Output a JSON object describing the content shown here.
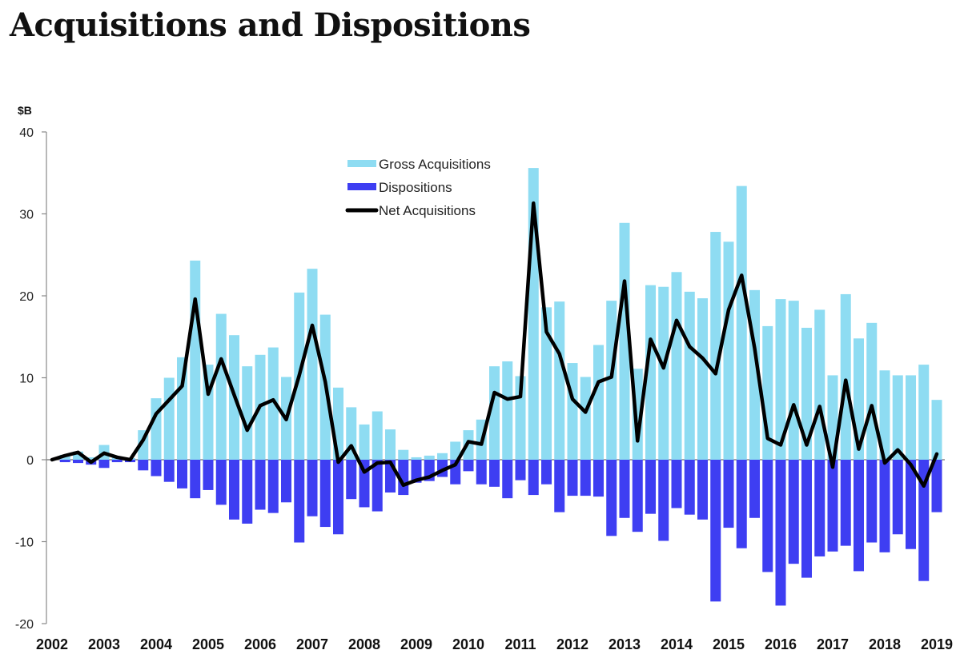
{
  "title": "Acquisitions and Dispositions",
  "chart_data": {
    "type": "bar",
    "title": "Acquisitions and Dispositions",
    "ylabel": "$B",
    "xlabel": "",
    "ylim": [
      -20,
      40
    ],
    "yticks": [
      -20,
      -10,
      0,
      10,
      20,
      30,
      40
    ],
    "years": [
      "2002",
      "2003",
      "2004",
      "2005",
      "2006",
      "2007",
      "2008",
      "2009",
      "2010",
      "2011",
      "2012",
      "2013",
      "2014",
      "2015",
      "2016",
      "2017",
      "2018",
      "2019"
    ],
    "colors": {
      "gross": "#8edcf2",
      "dispositions": "#3e3ef2",
      "net": "#000000",
      "axis": "#888888"
    },
    "legend": {
      "position": "top-center",
      "entries": [
        "Gross Acquisitions",
        "Dispositions",
        "Net Acquisitions"
      ]
    },
    "series": [
      {
        "name": "Gross Acquisitions",
        "type": "bar",
        "values": [
          0.0,
          0.6,
          1.0,
          0.3,
          1.8,
          0.4,
          0.2,
          3.6,
          7.5,
          10.0,
          12.5,
          24.3,
          11.6,
          17.8,
          15.2,
          11.4,
          12.8,
          13.7,
          10.1,
          20.4,
          23.3,
          17.7,
          8.8,
          6.4,
          4.3,
          5.9,
          3.7,
          1.2,
          0.3,
          0.5,
          0.8,
          2.2,
          3.6,
          4.9,
          11.4,
          12.0,
          10.2,
          35.6,
          18.6,
          19.3,
          11.8,
          10.1,
          14.0,
          19.4,
          28.9,
          11.1,
          21.3,
          21.1,
          22.9,
          20.5,
          19.7,
          27.8,
          26.6,
          33.4,
          20.7,
          16.3,
          19.6,
          19.4,
          16.1,
          18.3,
          10.3,
          20.2,
          14.8,
          16.7,
          10.9,
          10.3,
          10.3,
          11.6,
          7.3
        ]
      },
      {
        "name": "Dispositions",
        "type": "bar",
        "values": [
          0.0,
          -0.3,
          -0.4,
          -0.6,
          -1.0,
          -0.3,
          -0.3,
          -1.3,
          -2.0,
          -2.7,
          -3.5,
          -4.7,
          -3.7,
          -5.5,
          -7.3,
          -7.8,
          -6.1,
          -6.5,
          -5.2,
          -10.1,
          -6.9,
          -8.2,
          -9.1,
          -4.8,
          -5.8,
          -6.3,
          -4.0,
          -4.3,
          -2.8,
          -2.6,
          -2.1,
          -3.0,
          -1.4,
          -3.0,
          -3.3,
          -4.7,
          -2.5,
          -4.3,
          -3.0,
          -6.4,
          -4.4,
          -4.4,
          -4.5,
          -9.3,
          -7.1,
          -8.8,
          -6.6,
          -9.9,
          -5.9,
          -6.7,
          -7.3,
          -17.3,
          -8.3,
          -10.8,
          -7.1,
          -13.7,
          -17.8,
          -12.7,
          -14.4,
          -11.8,
          -11.2,
          -10.5,
          -13.6,
          -10.1,
          -11.3,
          -9.1,
          -10.9,
          -14.8,
          -6.4
        ]
      },
      {
        "name": "Net Acquisitions",
        "type": "line",
        "values": [
          0.0,
          0.5,
          0.9,
          -0.3,
          0.8,
          0.3,
          0.0,
          2.4,
          5.6,
          7.3,
          9.0,
          19.6,
          8.0,
          12.3,
          7.9,
          3.6,
          6.6,
          7.3,
          4.9,
          10.3,
          16.4,
          9.5,
          -0.3,
          1.7,
          -1.5,
          -0.4,
          -0.3,
          -3.1,
          -2.5,
          -2.1,
          -1.3,
          -0.6,
          2.2,
          1.9,
          8.2,
          7.4,
          7.7,
          31.3,
          15.6,
          12.9,
          7.4,
          5.8,
          9.5,
          10.1,
          21.8,
          2.3,
          14.7,
          11.2,
          17.0,
          13.8,
          12.4,
          10.5,
          18.3,
          22.5,
          13.6,
          2.6,
          1.8,
          6.7,
          1.8,
          6.5,
          -0.9,
          9.7,
          1.3,
          6.6,
          -0.4,
          1.2,
          -0.6,
          -3.2,
          0.7
        ]
      }
    ]
  }
}
